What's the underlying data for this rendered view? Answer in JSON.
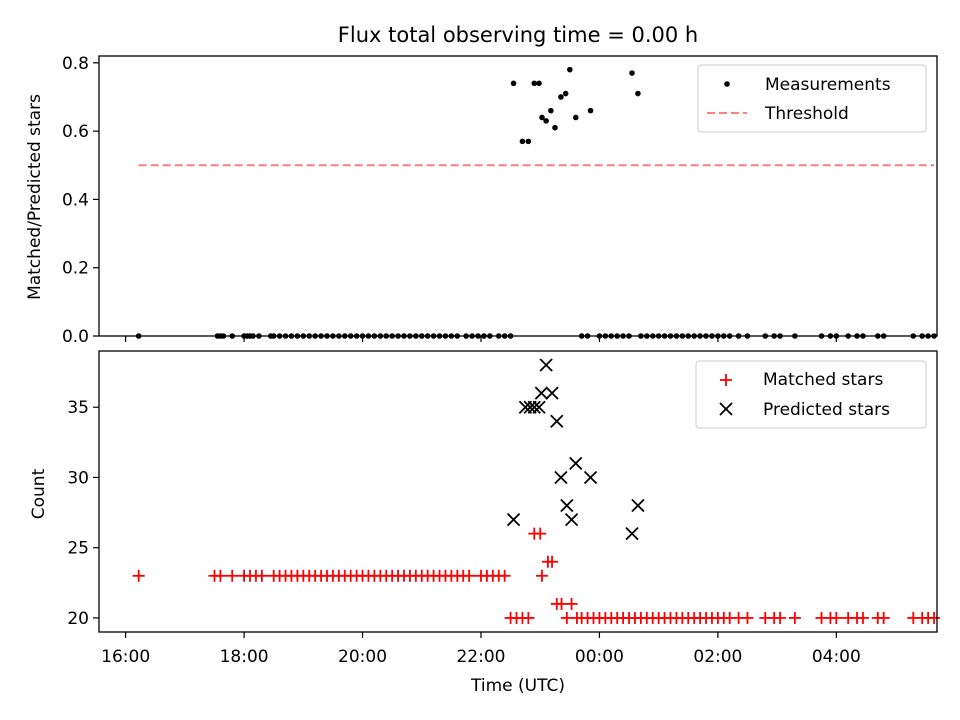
{
  "chart_data": [
    {
      "type": "scatter",
      "title": "Flux total observing time = 0.00 h",
      "xlabel": "",
      "ylabel": "Matched/Predicted stars",
      "x_axis": "hours since 16:00 UTC (shared)",
      "xlim": [
        -0.45,
        13.7
      ],
      "ylim": [
        0.0,
        0.82
      ],
      "yticks": [
        "0.0",
        "0.2",
        "0.4",
        "0.6",
        "0.8"
      ],
      "legend_position": "upper right",
      "legend": [
        "Measurements",
        "Threshold"
      ],
      "series": [
        {
          "name": "Measurements",
          "kind": "points",
          "color": "#000000",
          "points": [
            [
              0.22,
              0
            ],
            [
              1.55,
              0
            ],
            [
              1.6,
              0
            ],
            [
              1.65,
              0
            ],
            [
              1.8,
              0
            ],
            [
              2.0,
              0
            ],
            [
              2.05,
              0
            ],
            [
              2.1,
              0
            ],
            [
              2.15,
              0
            ],
            [
              2.25,
              0
            ],
            [
              2.45,
              0
            ],
            [
              2.5,
              0
            ],
            [
              2.6,
              0
            ],
            [
              2.7,
              0
            ],
            [
              2.8,
              0
            ],
            [
              2.9,
              0
            ],
            [
              3.0,
              0
            ],
            [
              3.1,
              0
            ],
            [
              3.2,
              0
            ],
            [
              3.3,
              0
            ],
            [
              3.4,
              0
            ],
            [
              3.5,
              0
            ],
            [
              3.6,
              0
            ],
            [
              3.7,
              0
            ],
            [
              3.8,
              0
            ],
            [
              3.9,
              0
            ],
            [
              4.0,
              0
            ],
            [
              4.1,
              0
            ],
            [
              4.2,
              0
            ],
            [
              4.3,
              0
            ],
            [
              4.4,
              0
            ],
            [
              4.5,
              0
            ],
            [
              4.6,
              0
            ],
            [
              4.7,
              0
            ],
            [
              4.8,
              0
            ],
            [
              4.9,
              0
            ],
            [
              5.0,
              0
            ],
            [
              5.1,
              0
            ],
            [
              5.2,
              0
            ],
            [
              5.3,
              0
            ],
            [
              5.4,
              0
            ],
            [
              5.5,
              0
            ],
            [
              5.6,
              0
            ],
            [
              5.75,
              0
            ],
            [
              5.85,
              0
            ],
            [
              5.95,
              0
            ],
            [
              6.05,
              0
            ],
            [
              6.15,
              0
            ],
            [
              6.3,
              0
            ],
            [
              6.4,
              0
            ],
            [
              6.5,
              0
            ],
            [
              6.55,
              0.74
            ],
            [
              6.7,
              0.57
            ],
            [
              6.8,
              0.57
            ],
            [
              6.9,
              0.74
            ],
            [
              6.98,
              0.74
            ],
            [
              7.03,
              0.64
            ],
            [
              7.1,
              0.63
            ],
            [
              7.18,
              0.66
            ],
            [
              7.25,
              0.61
            ],
            [
              7.35,
              0.7
            ],
            [
              7.43,
              0.71
            ],
            [
              7.5,
              0.78
            ],
            [
              7.6,
              0.64
            ],
            [
              7.85,
              0.66
            ],
            [
              8.55,
              0.77
            ],
            [
              8.65,
              0.71
            ],
            [
              7.7,
              0
            ],
            [
              7.8,
              0
            ],
            [
              8.0,
              0
            ],
            [
              8.1,
              0
            ],
            [
              8.2,
              0
            ],
            [
              8.3,
              0
            ],
            [
              8.4,
              0
            ],
            [
              8.5,
              0
            ],
            [
              8.7,
              0
            ],
            [
              8.8,
              0
            ],
            [
              8.9,
              0
            ],
            [
              9.0,
              0
            ],
            [
              9.1,
              0
            ],
            [
              9.2,
              0
            ],
            [
              9.3,
              0
            ],
            [
              9.4,
              0
            ],
            [
              9.5,
              0
            ],
            [
              9.6,
              0
            ],
            [
              9.7,
              0
            ],
            [
              9.8,
              0
            ],
            [
              9.9,
              0
            ],
            [
              10.0,
              0
            ],
            [
              10.1,
              0
            ],
            [
              10.2,
              0
            ],
            [
              10.35,
              0
            ],
            [
              10.5,
              0
            ],
            [
              10.8,
              0
            ],
            [
              10.95,
              0
            ],
            [
              11.05,
              0
            ],
            [
              11.3,
              0
            ],
            [
              11.75,
              0
            ],
            [
              11.9,
              0
            ],
            [
              12.0,
              0
            ],
            [
              12.2,
              0
            ],
            [
              12.35,
              0
            ],
            [
              12.45,
              0
            ],
            [
              12.7,
              0
            ],
            [
              12.8,
              0
            ],
            [
              13.3,
              0
            ],
            [
              13.45,
              0
            ],
            [
              13.55,
              0
            ],
            [
              13.65,
              0
            ]
          ]
        },
        {
          "name": "Threshold",
          "kind": "dashed-line",
          "color": "#ff7f7f",
          "points": [
            [
              0.22,
              0.5
            ],
            [
              13.65,
              0.5
            ]
          ]
        }
      ]
    },
    {
      "type": "scatter",
      "title": "",
      "xlabel": "Time (UTC)",
      "ylabel": "Count",
      "x_axis": "hours since 16:00 UTC (shared)",
      "xlim": [
        -0.45,
        13.7
      ],
      "ylim": [
        19.0,
        39.0
      ],
      "yticks": [
        "20",
        "25",
        "30",
        "35"
      ],
      "xticks": [
        "16:00",
        "18:00",
        "20:00",
        "22:00",
        "00:00",
        "02:00",
        "04:00"
      ],
      "legend_position": "upper right",
      "legend": [
        "Matched stars",
        "Predicted stars"
      ],
      "series": [
        {
          "name": "Matched stars",
          "kind": "plus",
          "color": "#ff0000",
          "points": [
            [
              0.22,
              23
            ],
            [
              1.5,
              23
            ],
            [
              1.6,
              23
            ],
            [
              1.8,
              23
            ],
            [
              2.0,
              23
            ],
            [
              2.1,
              23
            ],
            [
              2.2,
              23
            ],
            [
              2.3,
              23
            ],
            [
              2.5,
              23
            ],
            [
              2.6,
              23
            ],
            [
              2.7,
              23
            ],
            [
              2.8,
              23
            ],
            [
              2.9,
              23
            ],
            [
              3.0,
              23
            ],
            [
              3.1,
              23
            ],
            [
              3.2,
              23
            ],
            [
              3.3,
              23
            ],
            [
              3.4,
              23
            ],
            [
              3.5,
              23
            ],
            [
              3.6,
              23
            ],
            [
              3.7,
              23
            ],
            [
              3.8,
              23
            ],
            [
              3.9,
              23
            ],
            [
              4.0,
              23
            ],
            [
              4.1,
              23
            ],
            [
              4.2,
              23
            ],
            [
              4.3,
              23
            ],
            [
              4.4,
              23
            ],
            [
              4.5,
              23
            ],
            [
              4.6,
              23
            ],
            [
              4.7,
              23
            ],
            [
              4.8,
              23
            ],
            [
              4.9,
              23
            ],
            [
              5.0,
              23
            ],
            [
              5.1,
              23
            ],
            [
              5.2,
              23
            ],
            [
              5.3,
              23
            ],
            [
              5.4,
              23
            ],
            [
              5.5,
              23
            ],
            [
              5.6,
              23
            ],
            [
              5.7,
              23
            ],
            [
              5.8,
              23
            ],
            [
              6.0,
              23
            ],
            [
              6.1,
              23
            ],
            [
              6.2,
              23
            ],
            [
              6.3,
              23
            ],
            [
              6.4,
              23
            ],
            [
              6.5,
              20
            ],
            [
              6.6,
              20
            ],
            [
              6.7,
              20
            ],
            [
              6.8,
              20
            ],
            [
              6.9,
              26
            ],
            [
              7.0,
              26
            ],
            [
              7.03,
              23
            ],
            [
              7.13,
              24
            ],
            [
              7.2,
              24
            ],
            [
              7.28,
              21
            ],
            [
              7.36,
              21
            ],
            [
              7.45,
              20
            ],
            [
              7.53,
              21
            ],
            [
              7.62,
              20
            ],
            [
              7.7,
              20
            ],
            [
              7.8,
              20
            ],
            [
              7.9,
              20
            ],
            [
              8.0,
              20
            ],
            [
              8.1,
              20
            ],
            [
              8.2,
              20
            ],
            [
              8.3,
              20
            ],
            [
              8.4,
              20
            ],
            [
              8.5,
              20
            ],
            [
              8.6,
              20
            ],
            [
              8.7,
              20
            ],
            [
              8.8,
              20
            ],
            [
              8.9,
              20
            ],
            [
              9.0,
              20
            ],
            [
              9.1,
              20
            ],
            [
              9.2,
              20
            ],
            [
              9.3,
              20
            ],
            [
              9.4,
              20
            ],
            [
              9.5,
              20
            ],
            [
              9.6,
              20
            ],
            [
              9.7,
              20
            ],
            [
              9.8,
              20
            ],
            [
              9.9,
              20
            ],
            [
              10.0,
              20
            ],
            [
              10.1,
              20
            ],
            [
              10.2,
              20
            ],
            [
              10.35,
              20
            ],
            [
              10.5,
              20
            ],
            [
              10.8,
              20
            ],
            [
              10.95,
              20
            ],
            [
              11.05,
              20
            ],
            [
              11.3,
              20
            ],
            [
              11.75,
              20
            ],
            [
              11.9,
              20
            ],
            [
              12.0,
              20
            ],
            [
              12.2,
              20
            ],
            [
              12.35,
              20
            ],
            [
              12.45,
              20
            ],
            [
              12.7,
              20
            ],
            [
              12.8,
              20
            ],
            [
              13.3,
              20
            ],
            [
              13.45,
              20
            ],
            [
              13.55,
              20
            ],
            [
              13.65,
              20
            ]
          ]
        },
        {
          "name": "Predicted stars",
          "kind": "x",
          "color": "#000000",
          "points": [
            [
              6.55,
              27
            ],
            [
              6.75,
              35
            ],
            [
              6.83,
              35
            ],
            [
              6.9,
              35
            ],
            [
              6.98,
              35
            ],
            [
              7.02,
              36
            ],
            [
              7.1,
              38
            ],
            [
              7.2,
              36
            ],
            [
              7.28,
              34
            ],
            [
              7.35,
              30
            ],
            [
              7.45,
              28
            ],
            [
              7.53,
              27
            ],
            [
              7.6,
              31
            ],
            [
              7.85,
              30
            ],
            [
              8.55,
              26
            ],
            [
              8.65,
              28
            ]
          ]
        }
      ]
    }
  ]
}
